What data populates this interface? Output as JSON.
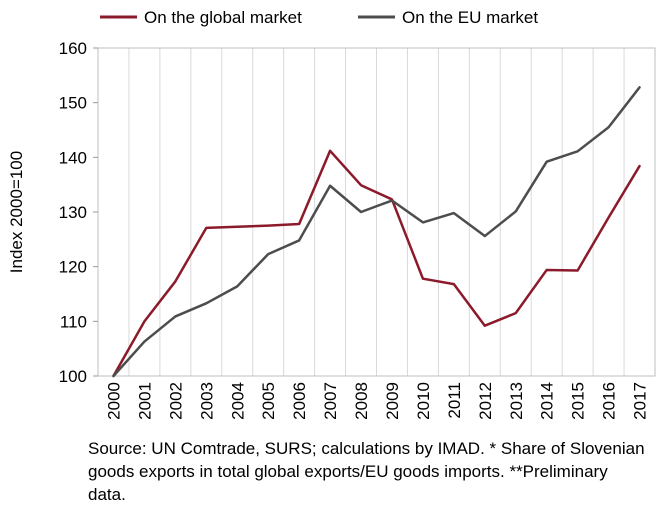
{
  "chart_data": {
    "type": "line",
    "title": "",
    "xlabel": "",
    "ylabel": "Index 2000=100",
    "ylim": [
      100,
      160
    ],
    "yticks": [
      "100",
      "110",
      "120",
      "130",
      "140",
      "150",
      "160"
    ],
    "categories": [
      "2000",
      "2001",
      "2002",
      "2003",
      "2004",
      "2005",
      "2006",
      "2007",
      "2008",
      "2009",
      "2010",
      "2011",
      "2012",
      "2013",
      "2014",
      "2015",
      "2016",
      "2017"
    ],
    "grid": "vertical",
    "legend_position": "top",
    "series": [
      {
        "name": "On the global market",
        "color": "#8b1a2b",
        "values": [
          100,
          110,
          117.3,
          127.1,
          127.3,
          127.5,
          127.8,
          141.2,
          134.9,
          132.3,
          117.8,
          116.8,
          109.2,
          111.5,
          119.4,
          119.3,
          129.0,
          138.4
        ]
      },
      {
        "name": "On the EU market",
        "color": "#4d4d4d",
        "values": [
          100,
          106.3,
          110.9,
          113.3,
          116.4,
          122.3,
          124.8,
          134.8,
          130.0,
          132.1,
          128.1,
          129.8,
          125.6,
          130.1,
          139.2,
          141.1,
          145.5,
          152.8
        ]
      }
    ]
  },
  "footnote": "Source: UN Comtrade, SURS; calculations by IMAD.  * Share of Slovenian goods exports in total global exports/EU goods imports. **Preliminary data."
}
